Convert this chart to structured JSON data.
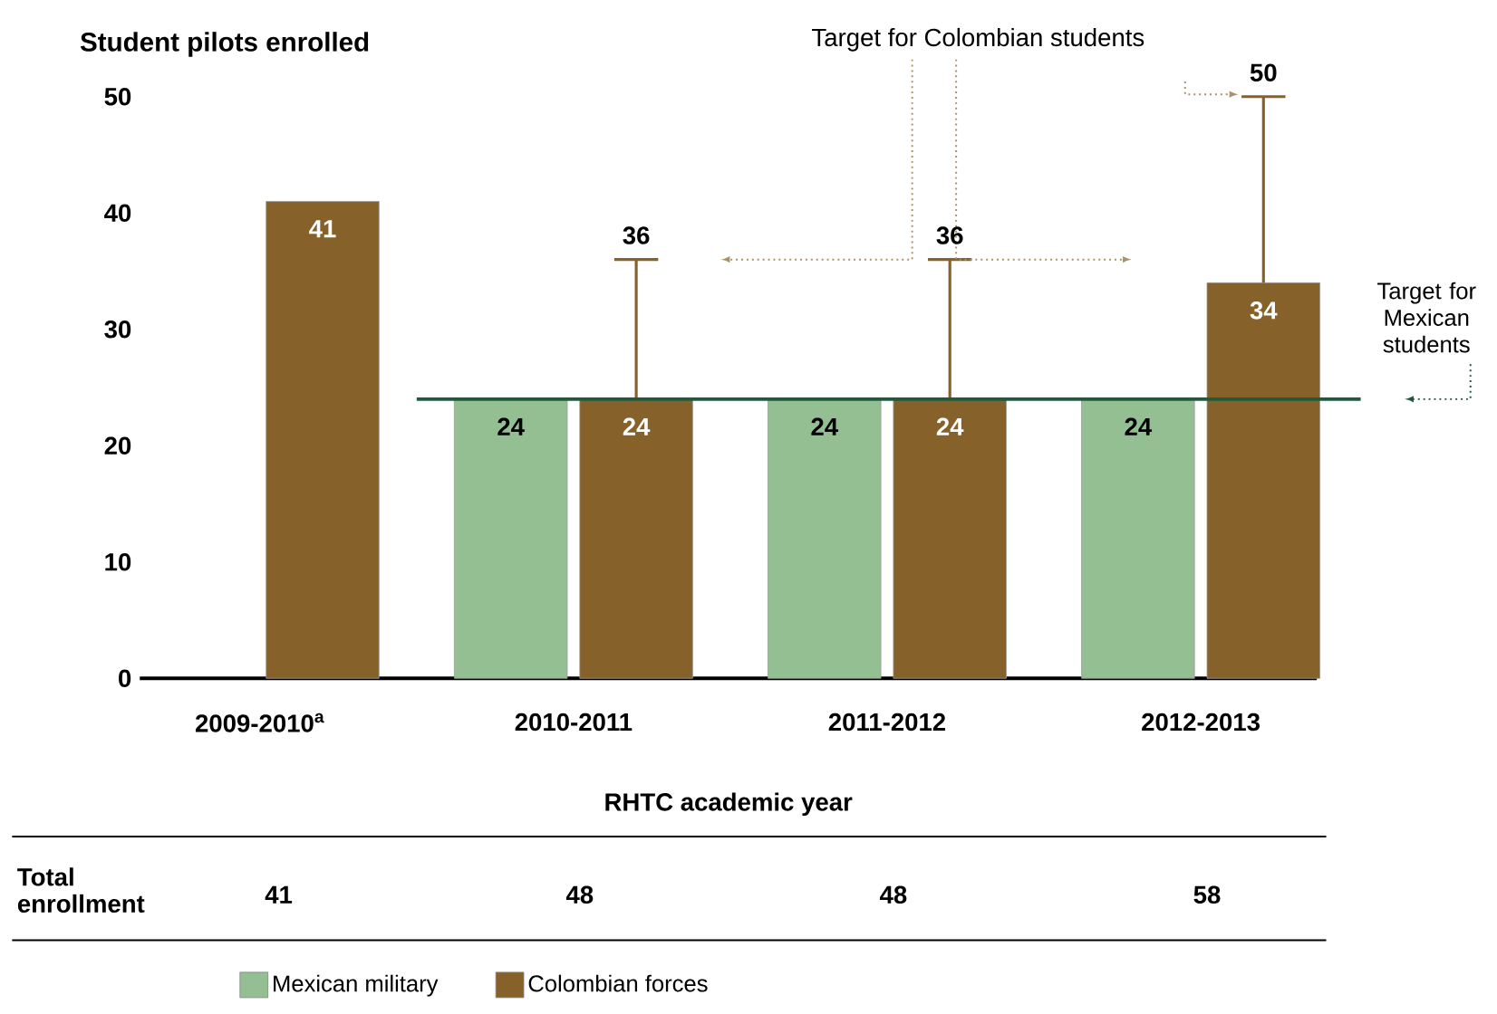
{
  "chart_data": {
    "type": "bar",
    "ylabel": "Student pilots enrolled",
    "xlabel": "RHTC academic year",
    "categories": [
      "2009-2010$^{a}$",
      "2010-2011",
      "2011-2012",
      "2012-2013"
    ],
    "series": [
      {
        "name": "Mexican military",
        "color": "#93bf93",
        "values": [
          null,
          24,
          24,
          24
        ]
      },
      {
        "name": "Colombian forces",
        "color": "#86622a",
        "values": [
          41,
          24,
          24,
          34
        ],
        "errors": [
          null,
          [
            24,
            36
          ],
          [
            24,
            36
          ],
          [
            34,
            50
          ]
        ]
      }
    ],
    "ylim": [
      0,
      50
    ],
    "yticks": [
      0,
      10,
      20,
      30,
      40,
      50
    ],
    "data_labels": true,
    "ref_lines": [
      {
        "axis": "y",
        "value": 24,
        "label": "Target for Mexican students",
        "color": "#1e5a3c"
      }
    ],
    "annotations": [
      "Target for Colombian students",
      "36",
      "36",
      "50",
      "Total enrollment",
      "41",
      "48",
      "48",
      "58"
    ],
    "legend": "bottom"
  }
}
